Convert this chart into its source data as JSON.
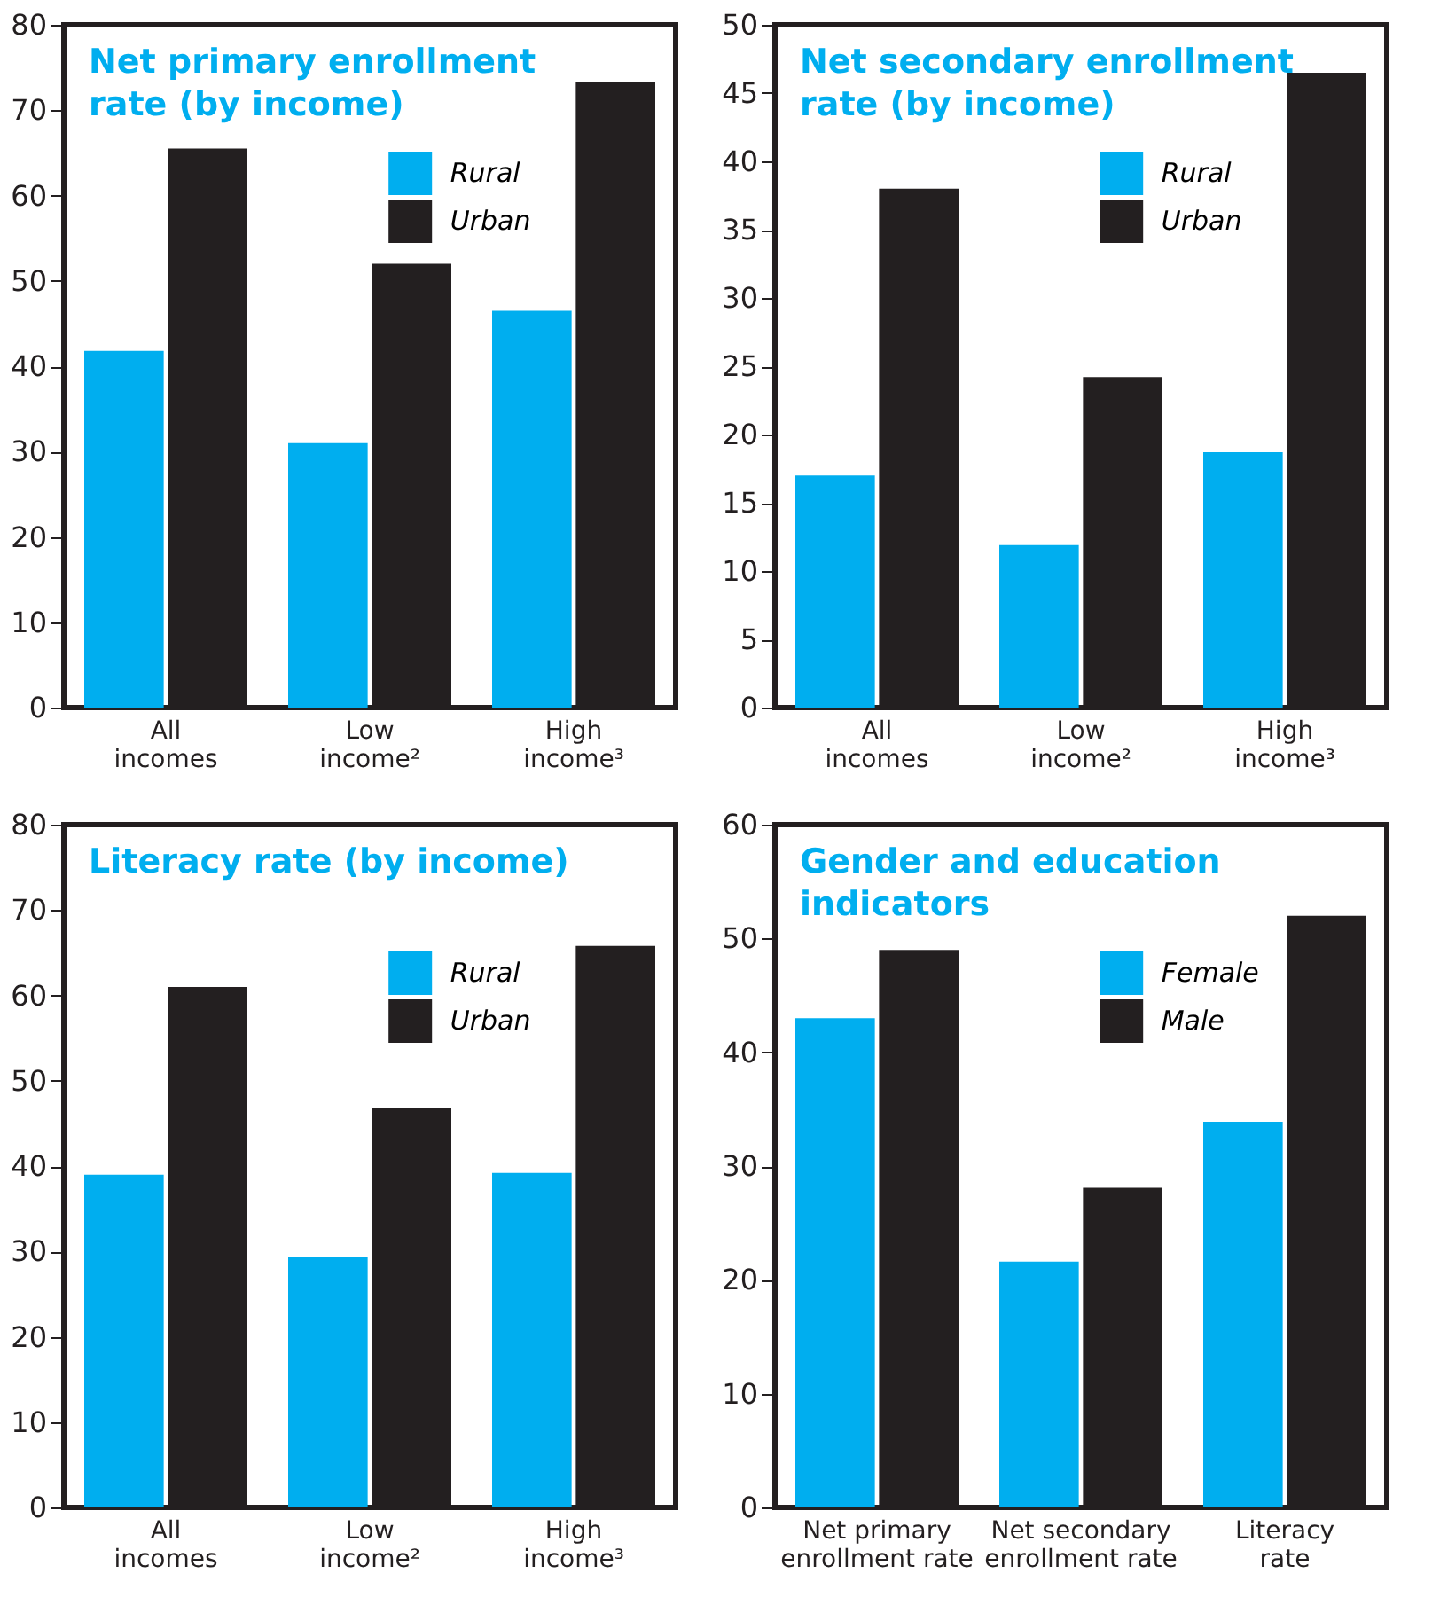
{
  "chart_data": [
    {
      "type": "bar",
      "title": "Net primary enrollment rate (by income)",
      "categories": [
        "All incomes",
        "Low income²",
        "High income³"
      ],
      "ylim": [
        0,
        80
      ],
      "yticks": [
        0,
        10,
        20,
        30,
        40,
        50,
        60,
        70,
        80
      ],
      "legend": "top right",
      "series": [
        {
          "name": "Rural",
          "color": "#00aeef",
          "values": [
            41.8,
            31,
            46.5
          ]
        },
        {
          "name": "Urban",
          "color": "#231f20",
          "values": [
            65.5,
            52,
            73.3
          ]
        }
      ]
    },
    {
      "type": "bar",
      "title": "Net secondary enrollment rate (by income)",
      "categories": [
        "All incomes",
        "Low income²",
        "High income³"
      ],
      "ylim": [
        0,
        50
      ],
      "yticks": [
        0,
        5,
        10,
        15,
        20,
        25,
        30,
        35,
        40,
        45,
        50
      ],
      "legend": "top right",
      "series": [
        {
          "name": "Rural",
          "color": "#00aeef",
          "values": [
            17,
            11.9,
            18.7
          ]
        },
        {
          "name": "Urban",
          "color": "#231f20",
          "values": [
            38,
            24.2,
            46.5
          ]
        }
      ]
    },
    {
      "type": "bar",
      "title": "Literacy rate (by income)",
      "categories": [
        "All incomes",
        "Low income²",
        "High income³"
      ],
      "ylim": [
        0,
        80
      ],
      "yticks": [
        0,
        10,
        20,
        30,
        40,
        50,
        60,
        70,
        80
      ],
      "legend": "top right",
      "series": [
        {
          "name": "Rural",
          "color": "#00aeef",
          "values": [
            39,
            29.3,
            39.2
          ]
        },
        {
          "name": "Urban",
          "color": "#231f20",
          "values": [
            61,
            46.8,
            65.8
          ]
        }
      ]
    },
    {
      "type": "bar",
      "title": "Gender and education indicators",
      "categories": [
        "Net primary enrollment rate",
        "Net secondary enrollment rate",
        "Literacy rate"
      ],
      "ylim": [
        0,
        60
      ],
      "yticks": [
        0,
        10,
        20,
        30,
        40,
        50,
        60
      ],
      "legend": "top right",
      "series": [
        {
          "name": "Female",
          "color": "#00aeef",
          "values": [
            43,
            21.6,
            33.9
          ]
        },
        {
          "name": "Male",
          "color": "#231f20",
          "values": [
            49,
            28.1,
            52
          ]
        }
      ]
    }
  ]
}
